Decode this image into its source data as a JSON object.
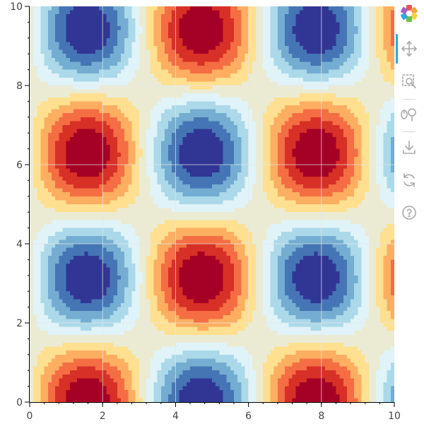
{
  "chart_data": {
    "type": "heatmap",
    "title": "",
    "xlabel": "",
    "ylabel": "",
    "x_range": [
      0,
      10
    ],
    "y_range": [
      0,
      10
    ],
    "x_ticks": [
      0,
      2,
      4,
      6,
      8,
      10
    ],
    "y_ticks": [
      0,
      2,
      4,
      6,
      8,
      10
    ],
    "x_tick_labels": [
      "0",
      "2",
      "4",
      "6",
      "8",
      "10"
    ],
    "y_tick_labels": [
      "0",
      "2",
      "4",
      "6",
      "8",
      "10"
    ],
    "function": "sin(x) * cos(y)",
    "value_range": [
      -1,
      1
    ],
    "grid": true,
    "palette": [
      "#313695",
      "#4575b4",
      "#74add1",
      "#abd9e9",
      "#e0f3f8",
      "#ebebd4",
      "#fee090",
      "#fdae61",
      "#f46d43",
      "#d73027",
      "#a50026"
    ],
    "extrema": [
      {
        "x": 1.57,
        "y": 0.0,
        "value": 1
      },
      {
        "x": 4.71,
        "y": 0.0,
        "value": -1
      },
      {
        "x": 7.85,
        "y": 0.0,
        "value": 1
      },
      {
        "x": 1.57,
        "y": 3.14,
        "value": -1
      },
      {
        "x": 4.71,
        "y": 3.14,
        "value": 1
      },
      {
        "x": 7.85,
        "y": 3.14,
        "value": -1
      },
      {
        "x": 1.57,
        "y": 6.28,
        "value": 1
      },
      {
        "x": 4.71,
        "y": 6.28,
        "value": -1
      },
      {
        "x": 7.85,
        "y": 6.28,
        "value": 1
      },
      {
        "x": 1.57,
        "y": 9.42,
        "value": -1
      },
      {
        "x": 4.71,
        "y": 9.42,
        "value": 1
      },
      {
        "x": 7.85,
        "y": 9.42,
        "value": -1
      }
    ]
  },
  "toolbar": {
    "tools": [
      {
        "name": "bokeh-logo-icon",
        "icon": "bokeh-logo"
      },
      {
        "name": "pan-tool-icon",
        "icon": "pan",
        "active": true
      },
      {
        "name": "box-zoom-tool-icon",
        "icon": "box-zoom"
      },
      {
        "name": "wheel-zoom-tool-icon",
        "icon": "wheel-zoom"
      },
      {
        "name": "save-tool-icon",
        "icon": "save"
      },
      {
        "name": "reset-tool-icon",
        "icon": "reset"
      },
      {
        "name": "help-tool-icon",
        "icon": "help"
      }
    ],
    "accent_color": "#26aae1",
    "icon_color": "#a9a9a9"
  }
}
